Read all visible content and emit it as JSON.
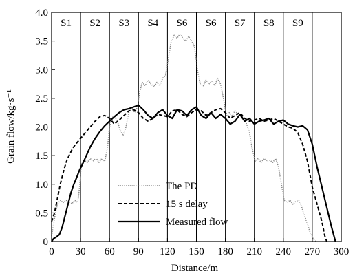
{
  "chart_data": {
    "type": "line",
    "xlabel": "Distance/m",
    "ylabel": "Grain flow/kg·s⁻¹",
    "xlim": [
      0,
      300
    ],
    "ylim": [
      0,
      4.0
    ],
    "x_ticks": [
      "0",
      "30",
      "60",
      "90",
      "120",
      "150",
      "180",
      "210",
      "240",
      "270",
      "300"
    ],
    "y_ticks": [
      "0",
      "0.5",
      "1.0",
      "1.5",
      "2.0",
      "2.5",
      "3.0",
      "3.5",
      "4.0"
    ],
    "grid": false,
    "legend_position": "lower-left",
    "section_boundaries_x": [
      30,
      60,
      90,
      120,
      150,
      180,
      210,
      240,
      270
    ],
    "section_labels": [
      {
        "label": "S1",
        "x": 15
      },
      {
        "label": "S2",
        "x": 45
      },
      {
        "label": "S3",
        "x": 75
      },
      {
        "label": "S4",
        "x": 105
      },
      {
        "label": "S6",
        "x": 135
      },
      {
        "label": "S6",
        "x": 165
      },
      {
        "label": "S7",
        "x": 195
      },
      {
        "label": "S8",
        "x": 225
      },
      {
        "label": "S9",
        "x": 255
      }
    ],
    "series": [
      {
        "name": "The PD",
        "style": "dotted",
        "color": "#888888",
        "x": [
          0,
          3,
          6,
          9,
          12,
          15,
          18,
          21,
          24,
          27,
          29,
          31,
          34,
          37,
          40,
          43,
          46,
          49,
          52,
          55,
          58,
          60,
          62,
          65,
          68,
          71,
          74,
          77,
          80,
          83,
          86,
          89,
          91,
          94,
          97,
          100,
          103,
          106,
          109,
          112,
          115,
          118,
          121,
          124,
          127,
          130,
          133,
          136,
          139,
          142,
          145,
          148,
          151,
          154,
          157,
          160,
          163,
          166,
          169,
          172,
          175,
          178,
          181,
          184,
          187,
          190,
          193,
          196,
          199,
          202,
          205,
          208,
          211,
          214,
          217,
          220,
          223,
          226,
          229,
          232,
          235,
          238,
          241,
          244,
          247,
          250,
          253,
          256,
          259,
          262,
          265,
          268,
          270,
          272,
          274
        ],
        "y": [
          0.1,
          0.4,
          0.65,
          0.72,
          0.68,
          0.72,
          0.7,
          0.66,
          0.72,
          0.68,
          0.95,
          1.35,
          1.42,
          1.38,
          1.45,
          1.4,
          1.46,
          1.38,
          1.45,
          1.4,
          1.65,
          2.0,
          2.15,
          2.2,
          2.1,
          1.95,
          1.85,
          2.0,
          2.25,
          2.35,
          2.25,
          2.35,
          2.6,
          2.78,
          2.72,
          2.82,
          2.75,
          2.7,
          2.78,
          2.72,
          2.85,
          2.9,
          3.2,
          3.5,
          3.6,
          3.55,
          3.62,
          3.55,
          3.5,
          3.58,
          3.5,
          3.4,
          3.0,
          2.75,
          2.72,
          2.82,
          2.75,
          2.8,
          2.72,
          2.85,
          2.75,
          2.5,
          2.2,
          2.25,
          2.2,
          2.28,
          2.22,
          2.2,
          2.15,
          2.05,
          1.9,
          1.6,
          1.4,
          1.45,
          1.38,
          1.45,
          1.4,
          1.42,
          1.38,
          1.45,
          1.3,
          1.0,
          0.72,
          0.68,
          0.72,
          0.65,
          0.7,
          0.72,
          0.6,
          0.45,
          0.3,
          0.15,
          0.08,
          0.02,
          0.0
        ]
      },
      {
        "name": "15 s delay",
        "style": "dashed",
        "color": "#000000",
        "x": [
          0,
          3,
          6,
          9,
          12,
          15,
          18,
          21,
          24,
          27,
          30,
          35,
          40,
          45,
          50,
          55,
          60,
          65,
          70,
          75,
          80,
          85,
          90,
          95,
          100,
          105,
          110,
          115,
          120,
          125,
          130,
          135,
          140,
          145,
          150,
          155,
          160,
          165,
          170,
          175,
          180,
          185,
          190,
          195,
          200,
          205,
          210,
          215,
          220,
          225,
          230,
          235,
          240,
          245,
          250,
          255,
          260,
          265,
          270,
          275,
          280,
          283,
          285
        ],
        "y": [
          0.35,
          0.5,
          0.75,
          1.0,
          1.2,
          1.38,
          1.5,
          1.6,
          1.68,
          1.74,
          1.8,
          1.9,
          2.0,
          2.1,
          2.18,
          2.2,
          2.15,
          2.05,
          2.12,
          2.2,
          2.28,
          2.3,
          2.25,
          2.15,
          2.1,
          2.15,
          2.22,
          2.2,
          2.18,
          2.28,
          2.3,
          2.22,
          2.18,
          2.25,
          2.3,
          2.28,
          2.2,
          2.25,
          2.3,
          2.32,
          2.25,
          2.15,
          2.2,
          2.25,
          2.15,
          2.1,
          2.12,
          2.15,
          2.1,
          2.12,
          2.15,
          2.1,
          2.05,
          2.0,
          1.98,
          1.9,
          1.7,
          1.4,
          0.95,
          0.65,
          0.35,
          0.1,
          0.0
        ]
      },
      {
        "name": "Measured flow",
        "style": "solid",
        "color": "#000000",
        "x": [
          0,
          2,
          5,
          8,
          11,
          14,
          17,
          20,
          23,
          26,
          29,
          32,
          36,
          40,
          45,
          50,
          55,
          60,
          65,
          70,
          75,
          80,
          85,
          90,
          95,
          100,
          105,
          110,
          115,
          120,
          125,
          130,
          135,
          140,
          145,
          150,
          155,
          160,
          165,
          170,
          175,
          180,
          185,
          190,
          195,
          200,
          205,
          210,
          215,
          220,
          225,
          230,
          235,
          240,
          245,
          250,
          255,
          260,
          265,
          270,
          275,
          280,
          285,
          290,
          294
        ],
        "y": [
          0.0,
          0.05,
          0.08,
          0.12,
          0.25,
          0.45,
          0.65,
          0.85,
          1.0,
          1.12,
          1.25,
          1.35,
          1.5,
          1.65,
          1.8,
          1.92,
          2.02,
          2.1,
          2.18,
          2.25,
          2.3,
          2.32,
          2.35,
          2.38,
          2.3,
          2.2,
          2.15,
          2.25,
          2.3,
          2.2,
          2.15,
          2.3,
          2.28,
          2.2,
          2.3,
          2.35,
          2.2,
          2.15,
          2.25,
          2.15,
          2.22,
          2.15,
          2.05,
          2.1,
          2.22,
          2.1,
          2.15,
          2.05,
          2.1,
          2.12,
          2.15,
          2.05,
          2.1,
          2.12,
          2.05,
          2.02,
          2.0,
          2.02,
          1.95,
          1.7,
          1.3,
          0.95,
          0.6,
          0.25,
          0.0
        ]
      }
    ]
  }
}
